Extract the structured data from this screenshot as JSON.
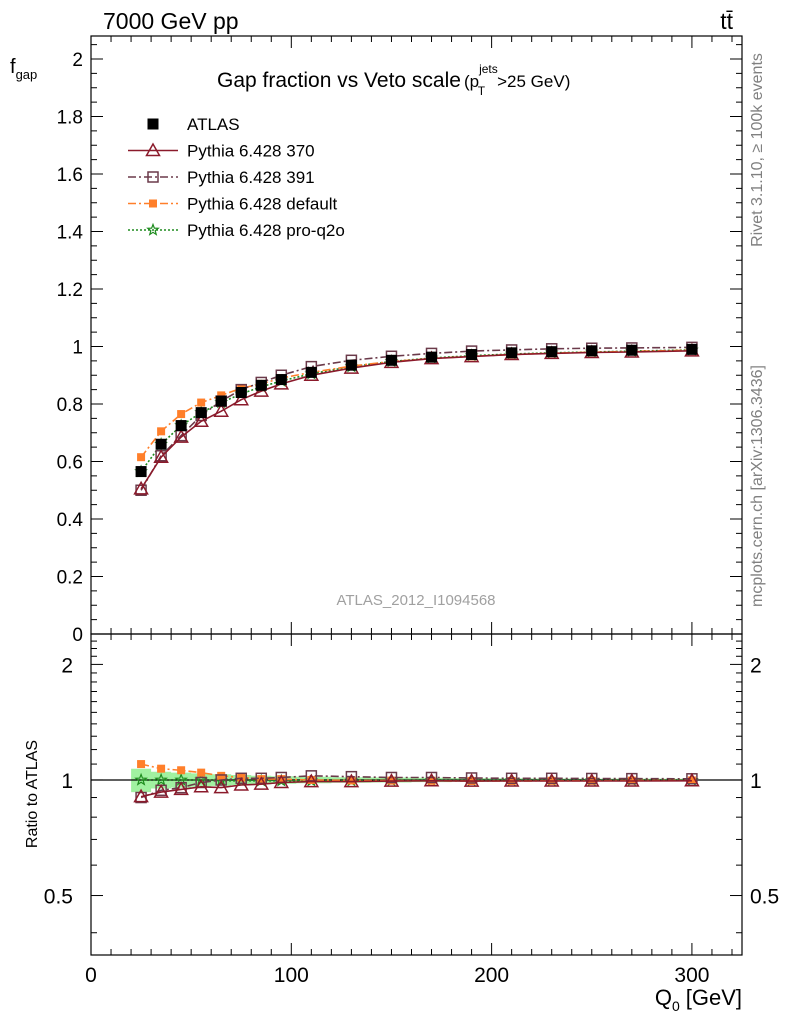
{
  "header": {
    "left": "7000 GeV pp",
    "right": "tt̄"
  },
  "side_labels": {
    "rivet": "Rivet 3.1.10, ≥ 100k events",
    "mcplots": "mcplots.cern.ch [arXiv:1306.3436]"
  },
  "chart_data": [
    {
      "type": "line",
      "title": "Gap fraction vs Veto scale",
      "title_suffix": {
        "open": "(p",
        "sup": "jets",
        "sub": "T",
        "close": ">25 GeV)"
      },
      "ylabel": "f",
      "ylabel_sub": "gap",
      "analysis_id": "ATLAS_2012_I1094568",
      "xlim": [
        0,
        325
      ],
      "ylim": [
        0,
        2.08
      ],
      "x_ticks": [
        0,
        100,
        200,
        300
      ],
      "y_ticks": [
        0,
        0.2,
        0.4,
        0.6,
        0.8,
        1,
        1.2,
        1.4,
        1.6,
        1.8,
        2
      ],
      "y_tick_labels": [
        "0",
        "0.2",
        "0.4",
        "0.6",
        "0.8",
        "1",
        "1.2",
        "1.4",
        "1.6",
        "1.8",
        "2"
      ],
      "legend_position": "top-left",
      "x": [
        25,
        35,
        45,
        55,
        65,
        75,
        85,
        95,
        110,
        130,
        150,
        170,
        190,
        210,
        230,
        250,
        270,
        300
      ],
      "series": [
        {
          "name": "ATLAS",
          "color": "#000000",
          "marker": "filled-square",
          "line": "none",
          "values": [
            0.565,
            0.66,
            0.725,
            0.77,
            0.81,
            0.84,
            0.865,
            0.885,
            0.91,
            0.935,
            0.952,
            0.963,
            0.972,
            0.978,
            0.982,
            0.985,
            0.987,
            0.99
          ]
        },
        {
          "name": "Pythia 6.428 370",
          "color": "#8b1a2b",
          "marker": "open-triangle",
          "line": "solid",
          "values": [
            0.505,
            0.615,
            0.685,
            0.74,
            0.775,
            0.815,
            0.845,
            0.87,
            0.9,
            0.925,
            0.945,
            0.958,
            0.965,
            0.972,
            0.976,
            0.979,
            0.981,
            0.985
          ]
        },
        {
          "name": "Pythia 6.428 391",
          "color": "#6b3a4a",
          "marker": "open-square",
          "line": "dashdot",
          "values": [
            0.5,
            0.62,
            0.69,
            0.76,
            0.81,
            0.85,
            0.875,
            0.9,
            0.93,
            0.952,
            0.966,
            0.976,
            0.984,
            0.988,
            0.992,
            0.994,
            0.995,
            0.997
          ]
        },
        {
          "name": "Pythia 6.428 default",
          "color": "#ff7f2a",
          "marker": "filled-square-small",
          "line": "dashdot",
          "values": [
            0.615,
            0.705,
            0.765,
            0.805,
            0.83,
            0.855,
            0.87,
            0.89,
            0.91,
            0.932,
            0.948,
            0.958,
            0.966,
            0.972,
            0.977,
            0.98,
            0.983,
            0.987
          ]
        },
        {
          "name": "Pythia 6.428 pro-q2o",
          "color": "#1e8c1e",
          "marker": "star",
          "line": "dotted",
          "values": [
            0.565,
            0.66,
            0.725,
            0.77,
            0.805,
            0.835,
            0.86,
            0.88,
            0.905,
            0.93,
            0.948,
            0.96,
            0.968,
            0.974,
            0.978,
            0.981,
            0.984,
            0.988
          ]
        }
      ]
    },
    {
      "type": "line",
      "title": "",
      "ylabel": "Ratio to ATLAS",
      "xlabel": "Q",
      "xlabel_sub": "0",
      "xlabel_unit": "[GeV]",
      "xlim": [
        0,
        325
      ],
      "ylim": [
        0.35,
        2.4
      ],
      "y_scale": "log",
      "x_ticks": [
        0,
        100,
        200,
        300
      ],
      "x_tick_labels": [
        "0",
        "100",
        "200",
        "300"
      ],
      "y_ticks": [
        0.5,
        1,
        2
      ],
      "y_tick_labels": [
        "0.5",
        "1",
        "2"
      ],
      "band": {
        "color": "#90ee90",
        "x": [
          25,
          35,
          45,
          55,
          65,
          75,
          85,
          95,
          110,
          130,
          150,
          170,
          190,
          210,
          230,
          250,
          270,
          300
        ],
        "half_width": [
          0.07,
          0.05,
          0.045,
          0.04,
          0.035,
          0.03,
          0.025,
          0.022,
          0.02,
          0.017,
          0.015,
          0.013,
          0.011,
          0.01,
          0.009,
          0.008,
          0.008,
          0.007
        ]
      },
      "series": [
        {
          "name": "Pythia 6.428 370",
          "color": "#8b1a2b",
          "marker": "open-triangle",
          "line": "solid",
          "values": [
            0.905,
            0.93,
            0.945,
            0.96,
            0.955,
            0.97,
            0.975,
            0.985,
            0.99,
            0.99,
            0.993,
            0.995,
            0.993,
            0.994,
            0.994,
            0.994,
            0.994,
            0.995
          ]
        },
        {
          "name": "Pythia 6.428 391",
          "color": "#6b3a4a",
          "marker": "open-square",
          "line": "dashdot",
          "values": [
            0.9,
            0.94,
            0.955,
            0.985,
            1.0,
            1.01,
            1.01,
            1.015,
            1.025,
            1.02,
            1.015,
            1.015,
            1.012,
            1.01,
            1.01,
            1.009,
            1.008,
            1.007
          ]
        },
        {
          "name": "Pythia 6.428 default",
          "color": "#ff7f2a",
          "marker": "filled-square-small",
          "line": "dashdot",
          "values": [
            1.1,
            1.07,
            1.06,
            1.045,
            1.025,
            1.015,
            1.005,
            1.005,
            1.0,
            0.997,
            0.996,
            0.995,
            0.994,
            0.994,
            0.995,
            0.995,
            0.996,
            0.997
          ]
        },
        {
          "name": "Pythia 6.428 pro-q2o",
          "color": "#1e8c1e",
          "marker": "star",
          "line": "dotted",
          "values": [
            1.0,
            1.0,
            1.0,
            1.0,
            0.995,
            0.995,
            0.995,
            0.995,
            0.995,
            0.995,
            0.996,
            0.997,
            0.996,
            0.996,
            0.996,
            0.996,
            0.997,
            0.998
          ]
        }
      ]
    }
  ]
}
